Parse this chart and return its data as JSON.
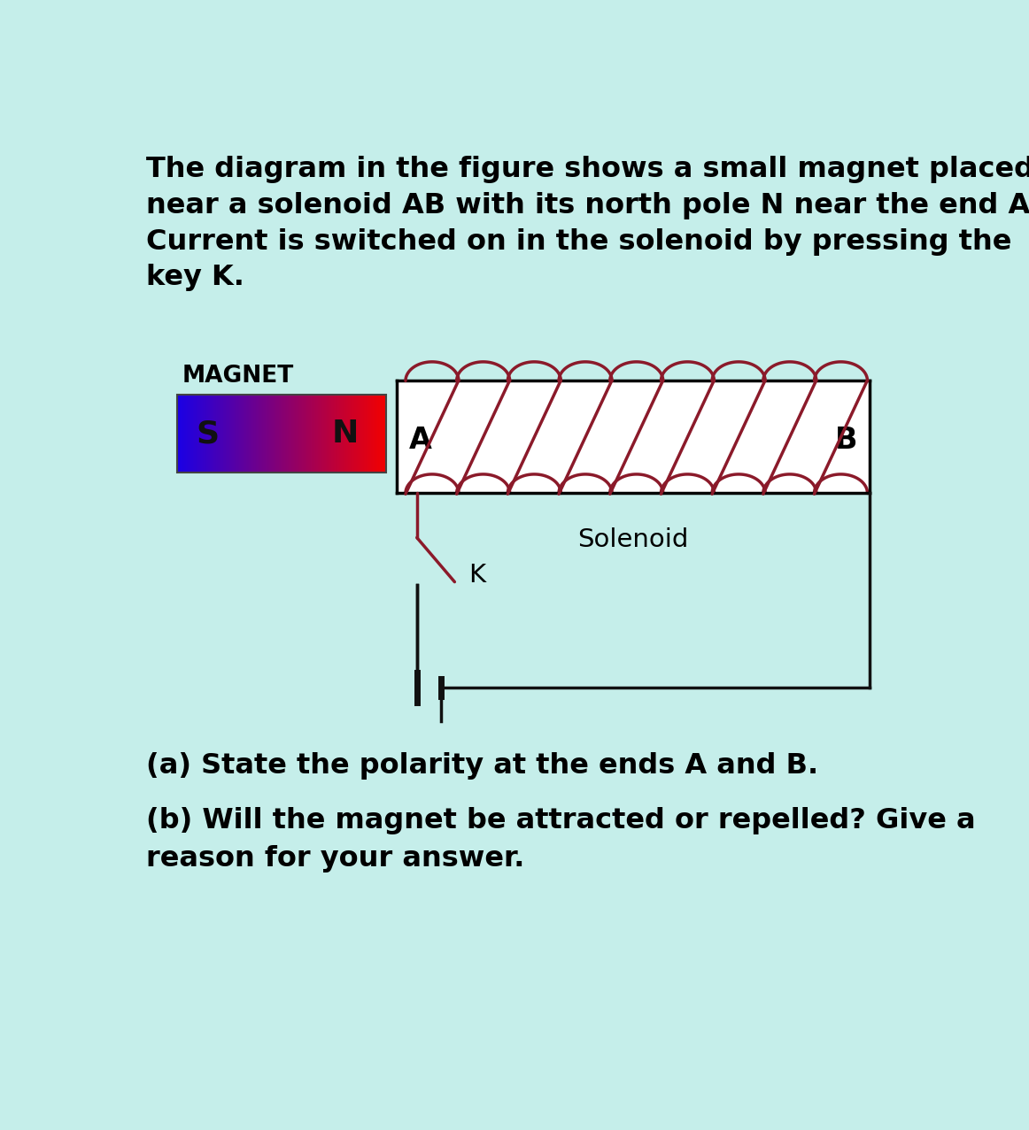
{
  "bg_color": "#c5eeea",
  "title_text": "The diagram in the figure shows a small magnet placed\nnear a solenoid AB with its north pole N near the end A.\nCurrent is switched on in the solenoid by pressing the\nkey K.",
  "question_a": "(a) State the polarity at the ends A and B.",
  "question_b": "(b) Will the magnet be attracted or repelled? Give a\nreason for your answer.",
  "magnet_label": "MAGNET",
  "solenoid_label": "Solenoid",
  "label_A": "A",
  "label_B": "B",
  "label_S": "S",
  "label_N": "N",
  "label_K": "K",
  "coil_color": "#8B1A2A",
  "wire_color": "#111111",
  "font_size_title": 23,
  "font_size_labels": 21,
  "font_size_questions": 23
}
